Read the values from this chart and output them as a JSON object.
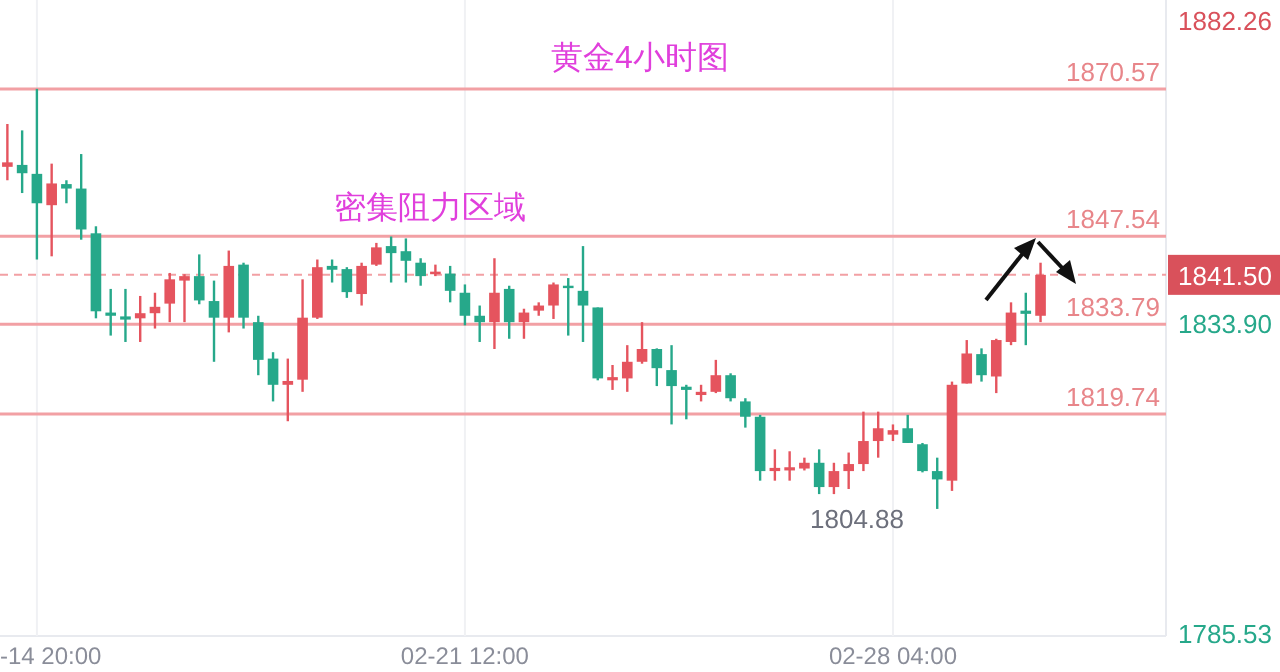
{
  "chart_data": {
    "type": "candlestick",
    "title": "黄金4小时图",
    "annotations": [
      "密集阻力区域",
      "1804.88"
    ],
    "categories": [
      null,
      null,
      "-14 20:00",
      null,
      null,
      null,
      null,
      null,
      null,
      null,
      null,
      null,
      null,
      null,
      null,
      null,
      null,
      null,
      null,
      null,
      null,
      null,
      null,
      null,
      null,
      null,
      null,
      null,
      null,
      null,
      null,
      "02-21 12:00",
      null,
      null,
      null,
      null,
      null,
      null,
      null,
      null,
      null,
      null,
      null,
      null,
      null,
      null,
      null,
      null,
      null,
      null,
      null,
      null,
      null,
      null,
      null,
      null,
      null,
      null,
      null,
      null,
      "02-28 04:00",
      null,
      null,
      null,
      null,
      null,
      null,
      null,
      null,
      null,
      null
    ],
    "ohlc": [
      [
        1858.4,
        1865.1,
        1856.3,
        1859.1
      ],
      [
        1858.7,
        1864.1,
        1854.3,
        1857.4
      ],
      [
        1857.3,
        1870.6,
        1843.9,
        1852.7
      ],
      [
        1852.4,
        1858.9,
        1844.4,
        1855.8
      ],
      [
        1855.7,
        1856.3,
        1852.7,
        1855.0
      ],
      [
        1855.0,
        1860.4,
        1847.0,
        1848.6
      ],
      [
        1848.0,
        1849.1,
        1834.7,
        1835.8
      ],
      [
        1835.6,
        1839.3,
        1832.0,
        1835.1
      ],
      [
        1835.0,
        1839.3,
        1831.0,
        1834.5
      ],
      [
        1834.7,
        1838.2,
        1831.0,
        1835.5
      ],
      [
        1835.5,
        1838.7,
        1833.1,
        1836.5
      ],
      [
        1837.0,
        1841.8,
        1834.1,
        1840.8
      ],
      [
        1840.6,
        1841.6,
        1834.1,
        1841.3
      ],
      [
        1841.3,
        1844.7,
        1836.9,
        1837.5
      ],
      [
        1837.4,
        1840.6,
        1827.9,
        1834.8
      ],
      [
        1834.8,
        1845.3,
        1832.5,
        1842.9
      ],
      [
        1843.1,
        1843.4,
        1833.1,
        1834.8
      ],
      [
        1834.1,
        1835.1,
        1825.8,
        1828.2
      ],
      [
        1828.4,
        1829.4,
        1821.7,
        1824.3
      ],
      [
        1824.3,
        1828.4,
        1818.6,
        1824.9
      ],
      [
        1825.1,
        1840.8,
        1823.2,
        1834.8
      ],
      [
        1834.8,
        1843.9,
        1834.6,
        1842.7
      ],
      [
        1842.9,
        1843.9,
        1840.3,
        1842.3
      ],
      [
        1842.4,
        1842.7,
        1837.9,
        1838.8
      ],
      [
        1838.5,
        1843.4,
        1836.7,
        1842.9
      ],
      [
        1843.1,
        1846.5,
        1842.9,
        1845.8
      ],
      [
        1846.0,
        1847.5,
        1840.3,
        1844.9
      ],
      [
        1845.2,
        1847.2,
        1840.3,
        1843.7
      ],
      [
        1843.4,
        1844.1,
        1839.8,
        1841.3
      ],
      [
        1841.6,
        1843.1,
        1841.3,
        1842.0
      ],
      [
        1841.7,
        1842.9,
        1837.2,
        1839.0
      ],
      [
        1838.7,
        1840.0,
        1833.6,
        1835.1
      ],
      [
        1835.1,
        1836.7,
        1831.0,
        1834.1
      ],
      [
        1834.1,
        1844.1,
        1829.9,
        1838.7
      ],
      [
        1839.3,
        1839.8,
        1831.5,
        1834.1
      ],
      [
        1834.1,
        1836.2,
        1831.5,
        1835.6
      ],
      [
        1835.9,
        1837.2,
        1835.1,
        1836.7
      ],
      [
        1836.7,
        1840.3,
        1834.6,
        1840.0
      ],
      [
        1839.8,
        1841.0,
        1832.0,
        1839.5
      ],
      [
        1839.0,
        1846.0,
        1831.0,
        1836.7
      ],
      [
        1836.4,
        1836.4,
        1825.0,
        1825.3
      ],
      [
        1825.0,
        1827.4,
        1823.5,
        1825.5
      ],
      [
        1825.3,
        1830.5,
        1823.2,
        1827.9
      ],
      [
        1827.9,
        1834.1,
        1827.6,
        1829.9
      ],
      [
        1829.9,
        1830.0,
        1824.1,
        1826.9
      ],
      [
        1826.6,
        1830.5,
        1818.1,
        1824.1
      ],
      [
        1824.0,
        1824.3,
        1818.9,
        1823.5
      ],
      [
        1822.7,
        1824.3,
        1821.7,
        1823.2
      ],
      [
        1823.2,
        1828.2,
        1823.0,
        1825.8
      ],
      [
        1825.8,
        1826.1,
        1821.7,
        1822.2
      ],
      [
        1821.7,
        1822.2,
        1817.6,
        1819.3
      ],
      [
        1819.3,
        1819.6,
        1809.3,
        1810.8
      ],
      [
        1810.8,
        1814.2,
        1809.3,
        1811.3
      ],
      [
        1810.9,
        1813.9,
        1809.3,
        1811.4
      ],
      [
        1811.2,
        1812.9,
        1810.9,
        1812.1
      ],
      [
        1812.1,
        1814.2,
        1807.2,
        1808.3
      ],
      [
        1808.3,
        1812.1,
        1807.2,
        1810.8
      ],
      [
        1810.8,
        1813.7,
        1808.0,
        1811.9
      ],
      [
        1811.9,
        1820.1,
        1810.8,
        1815.5
      ],
      [
        1815.5,
        1820.1,
        1812.9,
        1817.5
      ],
      [
        1816.5,
        1818.1,
        1815.5,
        1817.2
      ],
      [
        1817.5,
        1819.6,
        1815.2,
        1815.2
      ],
      [
        1815.0,
        1815.2,
        1810.6,
        1810.8
      ],
      [
        1810.8,
        1812.9,
        1804.88,
        1809.5
      ],
      [
        1809.3,
        1824.8,
        1807.7,
        1824.3
      ],
      [
        1824.5,
        1831.3,
        1824.5,
        1829.2
      ],
      [
        1829.1,
        1830.0,
        1824.8,
        1825.8
      ],
      [
        1825.6,
        1831.5,
        1823.0,
        1831.3
      ],
      [
        1831.0,
        1837.2,
        1830.5,
        1835.6
      ],
      [
        1835.9,
        1838.7,
        1830.5,
        1835.4
      ],
      [
        1835.1,
        1843.4,
        1834.1,
        1841.5
      ]
    ],
    "colors": [
      "#e5545e",
      "#26a88a",
      "#26a88a",
      "#e5545e",
      "#26a88a",
      "#26a88a",
      "#26a88a",
      "#26a88a",
      "#26a88a",
      "#e5545e",
      "#e5545e",
      "#e5545e",
      "#e5545e",
      "#26a88a",
      "#26a88a",
      "#e5545e",
      "#26a88a",
      "#26a88a",
      "#26a88a",
      "#e5545e",
      "#e5545e",
      "#e5545e",
      "#26a88a",
      "#26a88a",
      "#e5545e",
      "#e5545e",
      "#26a88a",
      "#26a88a",
      "#26a88a",
      "#e5545e",
      "#26a88a",
      "#26a88a",
      "#26a88a",
      "#e5545e",
      "#26a88a",
      "#e5545e",
      "#e5545e",
      "#e5545e",
      "#26a88a",
      "#26a88a",
      "#26a88a",
      "#e5545e",
      "#e5545e",
      "#e5545e",
      "#26a88a",
      "#26a88a",
      "#26a88a",
      "#e5545e",
      "#e5545e",
      "#26a88a",
      "#26a88a",
      "#26a88a",
      "#e5545e",
      "#e5545e",
      "#e5545e",
      "#26a88a",
      "#e5545e",
      "#e5545e",
      "#e5545e",
      "#e5545e",
      "#e5545e",
      "#26a88a",
      "#26a88a",
      "#26a88a",
      "#e5545e",
      "#e5545e",
      "#26a88a",
      "#e5545e",
      "#e5545e",
      "#26a88a",
      "#e5545e"
    ],
    "ylim": [
      1785,
      1884.5
    ],
    "yticks": [
      1882.26,
      {
        "value": 1833.9,
        "label": "1833.90"
      },
      1785.53
    ],
    "ref_lines": [
      {
        "axis": "y",
        "value": 1870.57,
        "label": "1870.57",
        "color": "#f2a0a4"
      },
      {
        "axis": "y",
        "value": 1847.54,
        "label": "1847.54",
        "color": "#f2a0a4"
      },
      {
        "axis": "y",
        "value": 1833.79,
        "label": "1833.79",
        "color": "#f2a0a4"
      },
      {
        "axis": "y",
        "value": 1819.74,
        "label": "1819.74",
        "color": "#f2a0a4"
      },
      {
        "axis": "y",
        "value": 1841.5,
        "label": "1841.50",
        "color": "#f2a0a4",
        "line_style": "dashed"
      }
    ],
    "grid": "x"
  }
}
